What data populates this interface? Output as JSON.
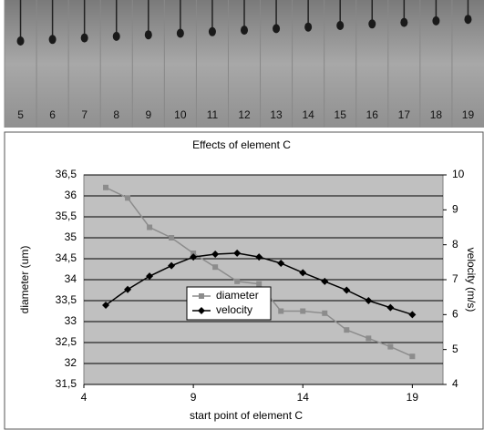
{
  "photo_labels": [
    5,
    6,
    7,
    8,
    9,
    10,
    11,
    12,
    13,
    14,
    15,
    16,
    17,
    18,
    19
  ],
  "chart_data": {
    "type": "line",
    "title": "Effects of element C",
    "x_label": "start point of element C",
    "y_label": "diameter (um)",
    "y2_label": "velocity (m/s)",
    "x": [
      5,
      6,
      7,
      8,
      9,
      10,
      11,
      12,
      13,
      14,
      15,
      16,
      17,
      18,
      19
    ],
    "series": [
      {
        "name": "diameter",
        "color": "#8c8c8c",
        "marker": "square",
        "axis": "y",
        "values": [
          36.2,
          35.95,
          35.25,
          35.0,
          34.63,
          34.3,
          33.96,
          33.9,
          33.25,
          33.25,
          33.2,
          32.8,
          32.6,
          32.4,
          32.17
        ]
      },
      {
        "name": "velocity",
        "color": "#000000",
        "marker": "diamond",
        "axis": "y2",
        "values": [
          6.27,
          6.72,
          7.1,
          7.4,
          7.65,
          7.73,
          7.76,
          7.65,
          7.47,
          7.2,
          6.95,
          6.7,
          6.4,
          6.2,
          6.0
        ]
      }
    ],
    "xlim": [
      4,
      20.4
    ],
    "xticks": [
      4,
      9,
      14,
      19
    ],
    "ylim": [
      31.5,
      36.5
    ],
    "yticks": [
      {
        "value": 31.5,
        "label": "31,5"
      },
      32,
      {
        "value": 32.5,
        "label": "32,5"
      },
      33,
      {
        "value": 33.5,
        "label": "33,5"
      },
      34,
      {
        "value": 34.5,
        "label": "34,5"
      },
      35,
      {
        "value": 35.5,
        "label": "35,5"
      },
      36,
      {
        "value": 36.5,
        "label": "36,5"
      }
    ],
    "y2lim": [
      4,
      10
    ],
    "y2ticks": [
      4,
      5,
      6,
      7,
      8,
      9,
      10
    ],
    "grid": true,
    "legend": "center"
  }
}
